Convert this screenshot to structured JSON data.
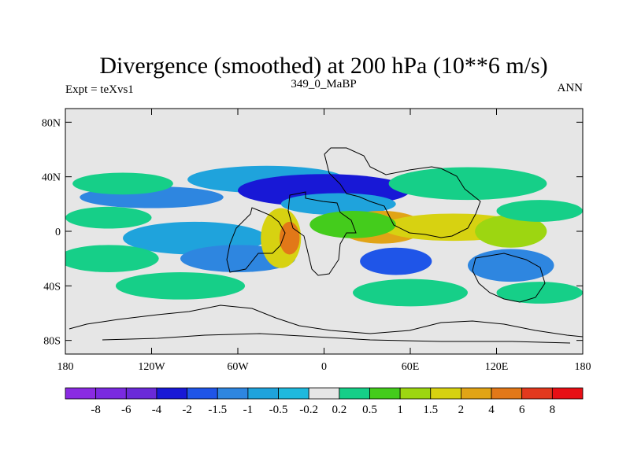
{
  "chart_data": {
    "type": "heatmap",
    "title": "Divergence (smoothed) at 200 hPa (10**6 m/s)",
    "subtitle_left": "Expt = teXvs1",
    "subtitle_center": "349_0_MaBP",
    "subtitle_right": "ANN",
    "xlim": [
      -180,
      180
    ],
    "ylim": [
      -90,
      90
    ],
    "x_ticks": [
      {
        "value": -180,
        "label": "180"
      },
      {
        "value": -120,
        "label": "120W"
      },
      {
        "value": -60,
        "label": "60W"
      },
      {
        "value": 0,
        "label": "0"
      },
      {
        "value": 60,
        "label": "60E"
      },
      {
        "value": 120,
        "label": "120E"
      },
      {
        "value": 180,
        "label": "180"
      }
    ],
    "y_ticks": [
      {
        "value": 80,
        "label": "80N"
      },
      {
        "value": 40,
        "label": "40N"
      },
      {
        "value": 0,
        "label": "0"
      },
      {
        "value": -40,
        "label": "40S"
      },
      {
        "value": -80,
        "label": "80S"
      }
    ],
    "colorbar": {
      "colors": [
        "#8a2be2",
        "#7a2ae0",
        "#6a2ad8",
        "#1818d6",
        "#1f55e8",
        "#2e86e0",
        "#1fa3dc",
        "#1fb9dd",
        "#e6e6e6",
        "#16cf88",
        "#44cc1c",
        "#9dd611",
        "#d7d211",
        "#e1a416",
        "#e27818",
        "#e2391e",
        "#e80f15"
      ],
      "labels": [
        "-8",
        "-6",
        "-4",
        "-2",
        "-1.5",
        "-1",
        "-0.5",
        "-0.2",
        "0.2",
        "0.5",
        "1",
        "1.5",
        "2",
        "4",
        "6",
        "8"
      ]
    },
    "field_description": "Smoothed upper-level divergence: convergence bands over subtropics, divergence over tropical Africa/Indian Ocean",
    "blobs": [
      {
        "lon": -40,
        "lat": 38,
        "rx": 55,
        "ry": 10,
        "level": 6
      },
      {
        "lon": 0,
        "lat": 30,
        "rx": 60,
        "ry": 12,
        "level": 3
      },
      {
        "lon": -120,
        "lat": 25,
        "rx": 50,
        "ry": 8,
        "level": 5
      },
      {
        "lon": 10,
        "lat": 20,
        "rx": 40,
        "ry": 8,
        "level": 6
      },
      {
        "lon": -90,
        "lat": -5,
        "rx": 50,
        "ry": 12,
        "level": 6
      },
      {
        "lon": -60,
        "lat": -20,
        "rx": 40,
        "ry": 10,
        "level": 5
      },
      {
        "lon": 50,
        "lat": -22,
        "rx": 25,
        "ry": 10,
        "level": 4
      },
      {
        "lon": 130,
        "lat": -25,
        "rx": 30,
        "ry": 12,
        "level": 5
      },
      {
        "lon": -30,
        "lat": -5,
        "rx": 14,
        "ry": 22,
        "level": 12
      },
      {
        "lon": -24,
        "lat": -5,
        "rx": 7,
        "ry": 12,
        "level": 14
      },
      {
        "lon": 40,
        "lat": 3,
        "rx": 30,
        "ry": 12,
        "level": 13
      },
      {
        "lon": 90,
        "lat": 3,
        "rx": 50,
        "ry": 10,
        "level": 12
      },
      {
        "lon": 130,
        "lat": 0,
        "rx": 25,
        "ry": 12,
        "level": 11
      },
      {
        "lon": 20,
        "lat": 5,
        "rx": 30,
        "ry": 10,
        "level": 10
      },
      {
        "lon": -140,
        "lat": 35,
        "rx": 35,
        "ry": 8,
        "level": 9
      },
      {
        "lon": 100,
        "lat": 35,
        "rx": 55,
        "ry": 12,
        "level": 9
      },
      {
        "lon": -150,
        "lat": 10,
        "rx": 30,
        "ry": 8,
        "level": 9
      },
      {
        "lon": 150,
        "lat": 15,
        "rx": 30,
        "ry": 8,
        "level": 9
      },
      {
        "lon": -150,
        "lat": -20,
        "rx": 35,
        "ry": 10,
        "level": 9
      },
      {
        "lon": -100,
        "lat": -40,
        "rx": 45,
        "ry": 10,
        "level": 9
      },
      {
        "lon": 60,
        "lat": -45,
        "rx": 40,
        "ry": 10,
        "level": 9
      },
      {
        "lon": 150,
        "lat": -45,
        "rx": 30,
        "ry": 8,
        "level": 9
      }
    ]
  }
}
